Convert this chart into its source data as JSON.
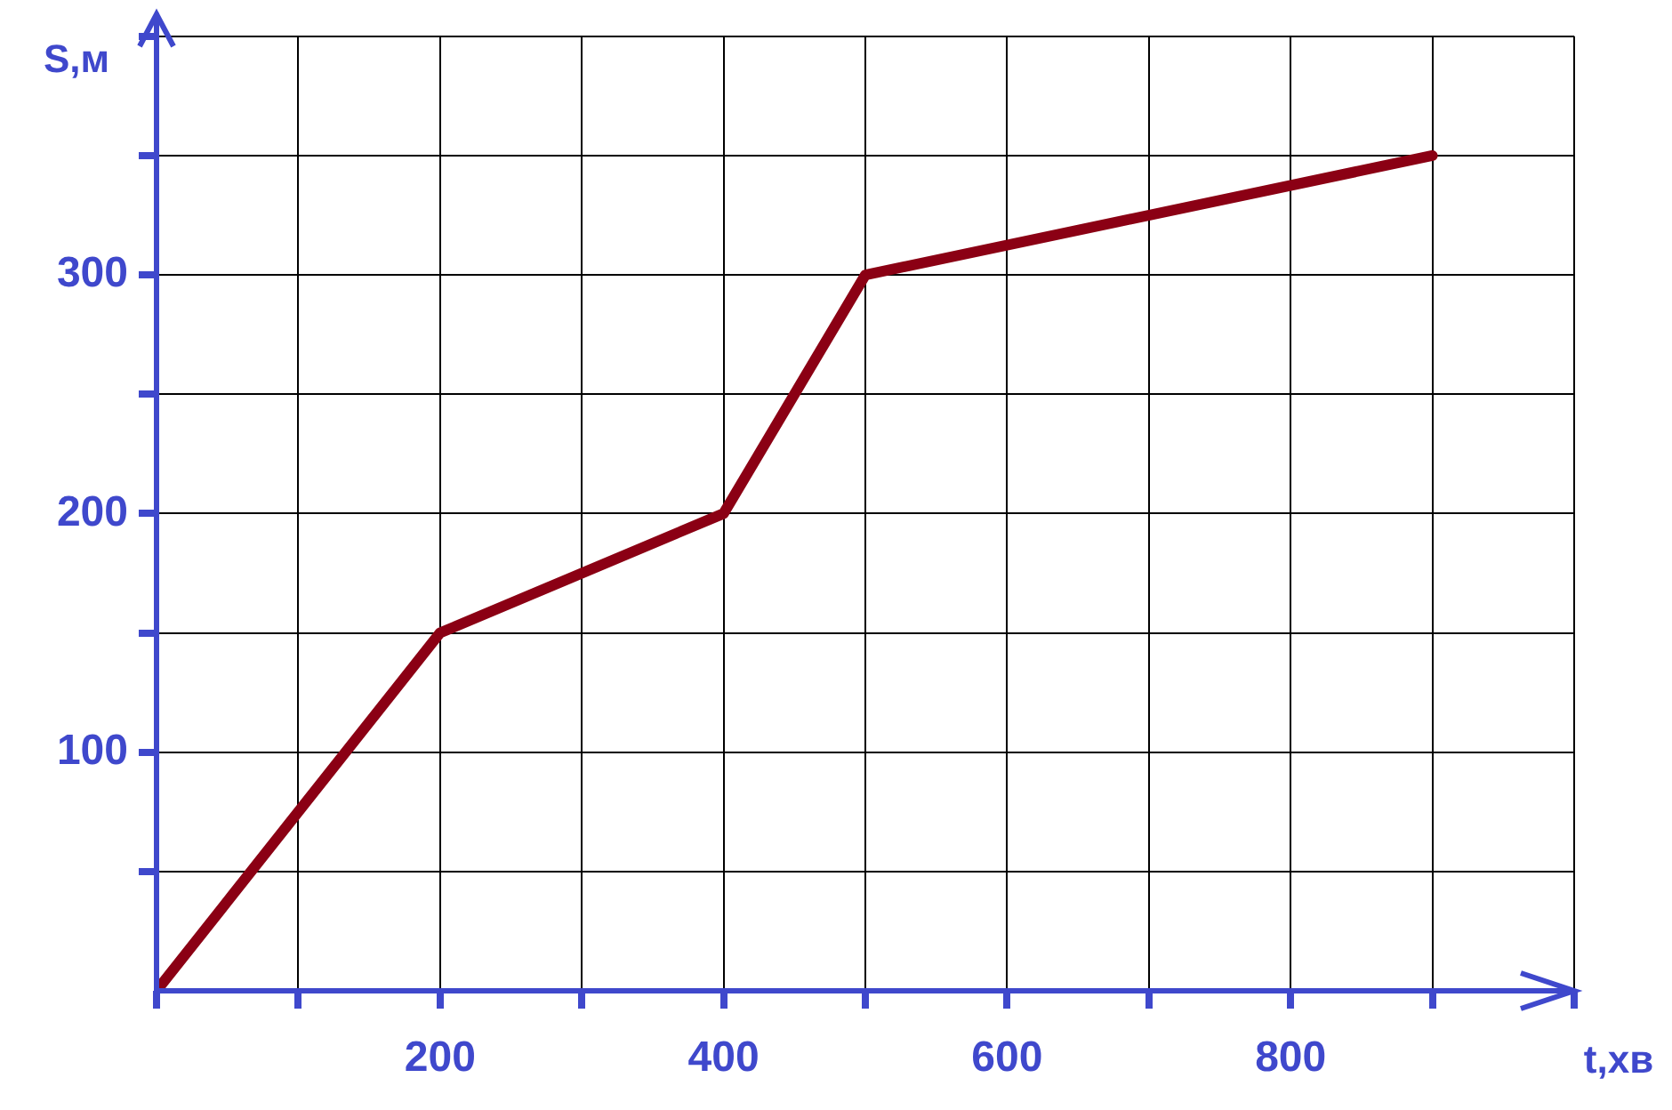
{
  "chart_data": {
    "type": "line",
    "xlabel": "t,хв",
    "ylabel": "S,м",
    "x": [
      0,
      200,
      400,
      500,
      900
    ],
    "series": [
      {
        "color": "#8b0014",
        "values": [
          0,
          150,
          200,
          300,
          350
        ]
      }
    ],
    "xlim": [
      0,
      1000
    ],
    "xticks": [
      {
        "value": 0,
        "label": null
      },
      {
        "value": 100,
        "label": null
      },
      200,
      {
        "value": 300,
        "label": null
      },
      400,
      {
        "value": 500,
        "label": null
      },
      600,
      {
        "value": 700,
        "label": null
      },
      800,
      {
        "value": 900,
        "label": null
      },
      {
        "value": 1000,
        "label": null
      }
    ],
    "ylim": [
      0,
      400
    ],
    "yticks": [
      {
        "value": 50,
        "label": null
      },
      100,
      {
        "value": 150,
        "label": null
      },
      200,
      {
        "value": 250,
        "label": null
      },
      300,
      {
        "value": 350,
        "label": null
      },
      {
        "value": 400,
        "label": null
      }
    ],
    "grid": true,
    "legend": false,
    "marker": "none",
    "line_style": "solid"
  }
}
